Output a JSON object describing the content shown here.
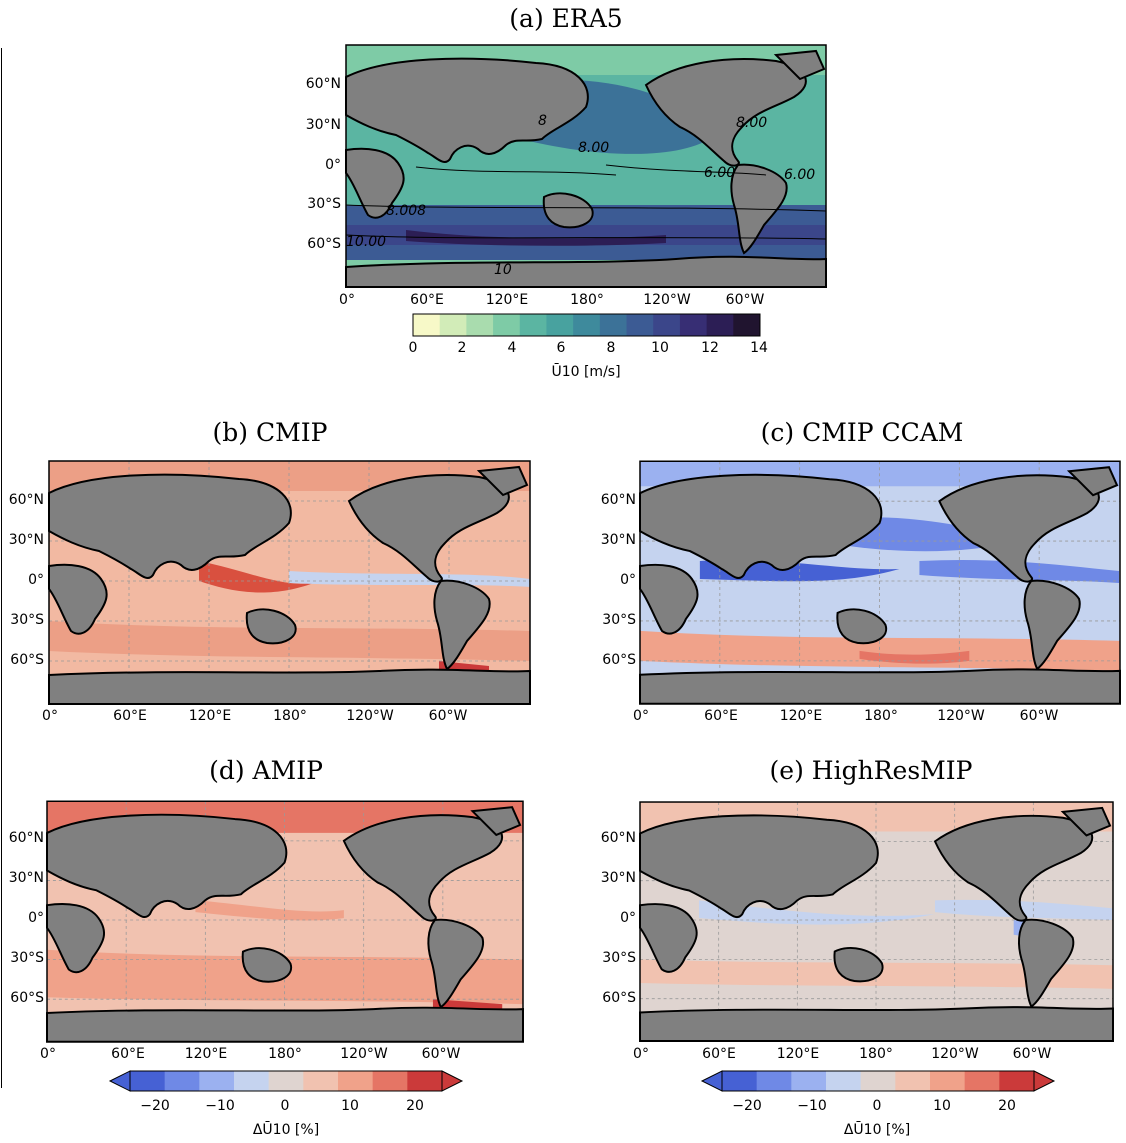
{
  "panels": {
    "a": {
      "title": "(a) ERA5"
    },
    "b": {
      "title": "(b) CMIP"
    },
    "c": {
      "title": "(c) CMIP CCAM"
    },
    "d": {
      "title": "(d) AMIP"
    },
    "e": {
      "title": "(e) HighResMIP"
    }
  },
  "axes": {
    "lat_labels": [
      "60°N",
      "30°N",
      "0°",
      "30°S",
      "60°S"
    ],
    "lon_labels": [
      "0°",
      "60°E",
      "120°E",
      "180°",
      "120°W",
      "60°W"
    ]
  },
  "contours": [
    "6.00",
    "8.00",
    "6",
    "8",
    "10",
    "10.00",
    "8.008"
  ],
  "colorbar_era5": {
    "ticks": [
      "0",
      "2",
      "4",
      "6",
      "8",
      "10",
      "12",
      "14"
    ],
    "label": "Ū10 [m/s]",
    "colors": [
      "#f7f9c8",
      "#d2ecb8",
      "#a9dcae",
      "#7ecba6",
      "#5bb5a2",
      "#48a29f",
      "#3e8a9c",
      "#3c7298",
      "#3c5b94",
      "#3b468a",
      "#372e74",
      "#2c1e55",
      "#20142f"
    ]
  },
  "colorbar_diff_left": {
    "ticks": [
      "−20",
      "−10",
      "0",
      "10",
      "20"
    ],
    "label": "ΔŪ10 [%]",
    "colors": [
      "#4661d4",
      "#6f89e6",
      "#9bb1f0",
      "#c5d3ef",
      "#dfd4d0",
      "#f1c2b0",
      "#f0a28a",
      "#e57565",
      "#cb3a3a"
    ]
  },
  "colorbar_diff_right": {
    "ticks": [
      "−20",
      "−10",
      "0",
      "10",
      "20"
    ],
    "label": "ΔŪ10 [%]"
  }
}
